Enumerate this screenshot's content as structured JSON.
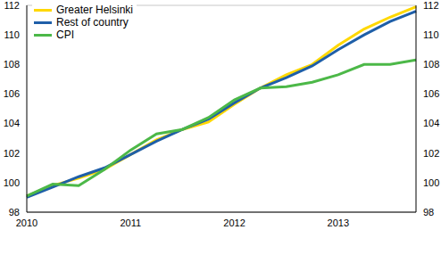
{
  "chart_data": {
    "type": "line",
    "categories": [
      "2010",
      null,
      null,
      null,
      "2011",
      null,
      null,
      null,
      "2012",
      null,
      null,
      null,
      "2013",
      null,
      null,
      null
    ],
    "series": [
      {
        "name": "Greater Helsinki",
        "color": "#ffd800",
        "values": [
          99.1,
          99.8,
          100.3,
          100.9,
          101.9,
          102.9,
          103.6,
          104.1,
          105.3,
          106.4,
          107.3,
          108.0,
          109.3,
          110.4,
          111.2,
          111.9
        ]
      },
      {
        "name": "Rest of country",
        "color": "#1f5fa8",
        "values": [
          99.0,
          99.7,
          100.4,
          101.0,
          101.9,
          102.8,
          103.6,
          104.3,
          105.4,
          106.4,
          107.1,
          107.9,
          109.0,
          110.0,
          110.9,
          111.6
        ]
      },
      {
        "name": "CPI",
        "color": "#4cb848",
        "values": [
          99.1,
          99.9,
          99.8,
          100.9,
          102.2,
          103.3,
          103.6,
          104.4,
          105.6,
          106.4,
          106.5,
          106.8,
          107.3,
          108.0,
          108.0,
          108.3
        ]
      }
    ],
    "ylim": [
      98,
      112
    ],
    "yticks": [
      98,
      100,
      102,
      104,
      106,
      108,
      110,
      112
    ],
    "grid": true,
    "legend": "top-left"
  }
}
